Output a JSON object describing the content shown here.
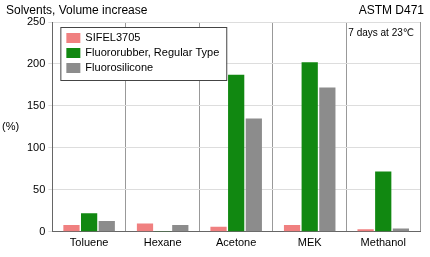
{
  "chart_data": {
    "type": "bar",
    "title": "Solvents, Volume increase",
    "annotations": [
      "ASTM D471",
      "7 days at 23℃"
    ],
    "ylabel": "(%)",
    "categories": [
      "Toluene",
      "Hexane",
      "Acetone",
      "MEK",
      "Methanol"
    ],
    "series": [
      {
        "name": "SIFEL3705",
        "color": "#f08080",
        "values": [
          8,
          10,
          6,
          8,
          3
        ]
      },
      {
        "name": "Fluororubber, Regular Type",
        "color": "#118811",
        "values": [
          22,
          1,
          187,
          202,
          72
        ]
      },
      {
        "name": "Fluorosilicone",
        "color": "#8c8c8c",
        "values": [
          13,
          8,
          135,
          172,
          4
        ]
      }
    ],
    "ylim": [
      0,
      250
    ],
    "yticks": [
      0,
      50,
      100,
      150,
      200,
      250
    ],
    "grid": true,
    "legend": "upper left"
  }
}
